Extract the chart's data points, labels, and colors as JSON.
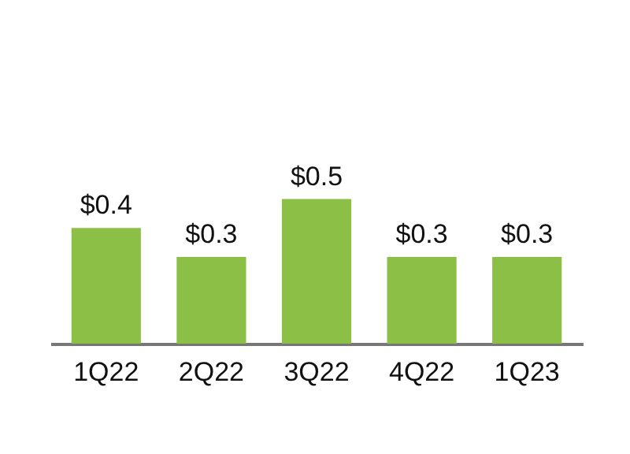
{
  "chart_data": {
    "type": "bar",
    "categories": [
      "1Q22",
      "2Q22",
      "3Q22",
      "4Q22",
      "1Q23"
    ],
    "values": [
      0.4,
      0.3,
      0.5,
      0.3,
      0.3
    ],
    "value_labels": [
      "$0.4",
      "$0.3",
      "$0.5",
      "$0.3",
      "$0.3"
    ],
    "color": "#8bbf45",
    "grid": false
  }
}
